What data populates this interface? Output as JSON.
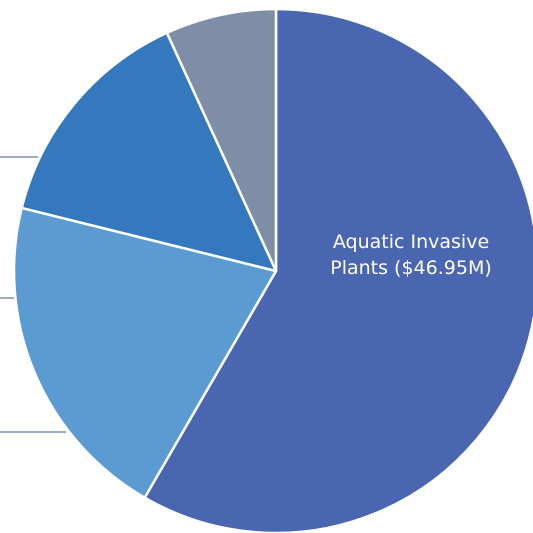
{
  "chart_data": {
    "type": "pie",
    "slices": [
      {
        "label": "Aquatic Invasive Plants ($46.95M)",
        "label_lines": [
          "Aquatic Invasive",
          "Plants ($46.95M)"
        ],
        "value": 46.95,
        "color": "#4A66B0"
      },
      {
        "value": 16.5,
        "color": "#5B9BD2"
      },
      {
        "value": 11.5,
        "color": "#3478BE"
      },
      {
        "value": 5.5,
        "color": "#7E8EA7"
      }
    ],
    "title": "",
    "legend": "none",
    "start_angle_deg": 0
  }
}
